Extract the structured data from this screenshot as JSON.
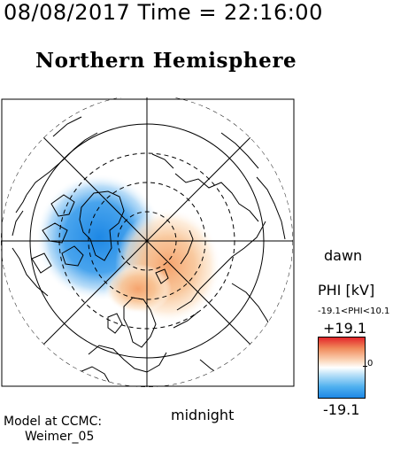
{
  "header": {
    "timestamp": "08/08/2017 Time = 22:16:00",
    "title": "Northern Hemisphere"
  },
  "map": {
    "orientation": {
      "dawn_label": "dawn",
      "midnight_label": "midnight"
    },
    "grid": {
      "latitude_circles": "dashed and solid rings",
      "longitude_lines": "radial"
    },
    "potential_pattern": {
      "negative_cell": "blue, dawn-midnight-left quadrant",
      "positive_cell": "orange, lower right quadrant"
    }
  },
  "colorbar": {
    "quantity_label": "PHI [kV]",
    "range_label": "-19.1<PHI<10.1",
    "max_label": "+19.1",
    "zero_label": "0",
    "min_label": "-19.1",
    "colors": {
      "max": "#e3262a",
      "zero": "#ffffff",
      "min": "#1e88e5"
    }
  },
  "footer": {
    "model_label": "Model at CCMC:",
    "model_name": "Weimer_05"
  }
}
